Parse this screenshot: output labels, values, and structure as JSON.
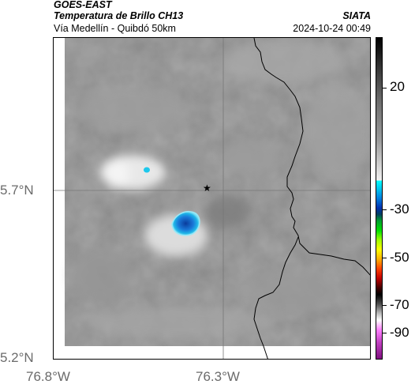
{
  "header": {
    "satellite": "GOES-EAST",
    "product": "Temperatura de Brillo CH13",
    "region": "Vía Medellín - Quibdó 50km",
    "brand": "SIATA",
    "timestamp": "2024-10-24 00:49"
  },
  "map": {
    "lat_labels": [
      "5.7°N",
      "5.2°N"
    ],
    "lon_labels": [
      "76.8°W",
      "76.3°W"
    ],
    "marker": "star-icon"
  },
  "colorbar": {
    "labels": [
      "20",
      "-30",
      "-50",
      "-70",
      "-90"
    ]
  },
  "colors": {
    "background_gray": "#8c8c8c",
    "cold_cloud_blue": "#1a6fd0",
    "border_line": "#000000"
  }
}
